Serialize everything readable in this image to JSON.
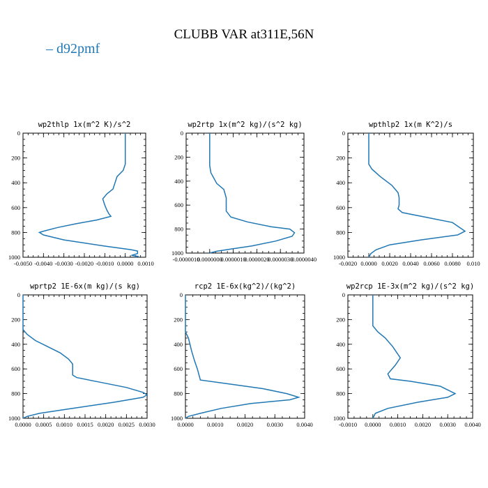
{
  "figure": {
    "title": "CLUBB VAR at311E,56N",
    "legend": "– d92pmf",
    "series_color": "#1f77b4"
  },
  "chart_data": [
    {
      "type": "line",
      "title": "wp2thlp  1x(m^2 K)/s^2",
      "xlim": [
        -0.005,
        0.001
      ],
      "ylim": [
        1000,
        0
      ],
      "xticks": [
        -0.005,
        -0.004,
        -0.003,
        -0.002,
        -0.001,
        0.0,
        0.001
      ],
      "xtick_labels": [
        "-0.0050",
        "-0.0040",
        "-0.0030",
        "-0.0020",
        "-0.0010",
        "0.0000",
        "0.0010"
      ],
      "yticks": [
        0,
        200,
        400,
        600,
        800,
        1000
      ],
      "ytick_labels": [
        "0",
        "200",
        "400",
        "600",
        "800",
        "1000"
      ],
      "series": [
        {
          "x": [
            0.0,
            0.0,
            0.0,
            0.0,
            -0.0001,
            -0.0004,
            -0.0005,
            -0.0006,
            -0.0009,
            -0.0011,
            -0.001,
            -0.0009,
            -0.0008,
            -0.0007,
            -0.0014,
            -0.0024,
            -0.0033,
            -0.004,
            -0.0042,
            -0.004,
            -0.003,
            -0.001,
            0.0003,
            0.0006,
            0.0006,
            0.0003,
            0.0006,
            0.0005
          ],
          "y": [
            0,
            100,
            200,
            250,
            300,
            350,
            400,
            450,
            490,
            530,
            580,
            620,
            650,
            670,
            700,
            730,
            760,
            790,
            800,
            820,
            860,
            910,
            940,
            950,
            970,
            985,
            992,
            1000
          ]
        }
      ]
    },
    {
      "type": "line",
      "title": "wp2rtp  1x(m^2 kg)/(s^2 kg)",
      "xlim": [
        -1e-06,
        4e-06
      ],
      "ylim": [
        1000,
        0
      ],
      "xticks": [
        -1e-06,
        0.0,
        1e-06,
        2e-06,
        3e-06,
        4e-06
      ],
      "xtick_labels": [
        "-0.0000010",
        "0.0000000",
        "0.0000010",
        "0.0000020",
        "0.0000030",
        "0.0000040"
      ],
      "yticks": [
        0,
        200,
        400,
        600,
        800,
        1000
      ],
      "ytick_labels": [
        "0",
        "200",
        "400",
        "600",
        "800",
        "1000"
      ],
      "series": [
        {
          "x": [
            0.0,
            0.0,
            0.0,
            0.0,
            5e-08,
            3e-07,
            6e-07,
            7e-07,
            7e-07,
            9e-07,
            1.6e-06,
            2.6e-06,
            3.4e-06,
            3.6e-06,
            3.5e-06,
            2.8e-06,
            1.8e-06,
            8e-07,
            3e-07,
            0.0
          ],
          "y": [
            0,
            100,
            200,
            270,
            330,
            420,
            470,
            540,
            650,
            700,
            740,
            780,
            800,
            830,
            860,
            900,
            940,
            970,
            985,
            1000
          ]
        }
      ]
    },
    {
      "type": "line",
      "title": "wpthlp2  1x(m K^2)/s",
      "xlim": [
        -0.002,
        0.01
      ],
      "ylim": [
        1000,
        0
      ],
      "xticks": [
        -0.002,
        0.0,
        0.002,
        0.004,
        0.006,
        0.008,
        0.01
      ],
      "xtick_labels": [
        "-0.0020",
        "0.0000",
        "0.0020",
        "0.0040",
        "0.0060",
        "0.0080",
        "0.010"
      ],
      "yticks": [
        0,
        200,
        400,
        600,
        800,
        1000
      ],
      "ytick_labels": [
        "0",
        "200",
        "400",
        "600",
        "800",
        "1000"
      ],
      "series": [
        {
          "x": [
            0.0,
            0.0,
            0.0,
            0.0,
            0.0003,
            0.0011,
            0.0022,
            0.0028,
            0.0029,
            0.0029,
            0.0028,
            0.0032,
            0.0056,
            0.008,
            0.0092,
            0.0085,
            0.005,
            0.002,
            0.0007,
            0.0002,
            0.0
          ],
          "y": [
            0,
            100,
            200,
            250,
            290,
            350,
            420,
            480,
            520,
            580,
            610,
            640,
            680,
            720,
            790,
            820,
            860,
            900,
            940,
            970,
            1000
          ]
        }
      ]
    },
    {
      "type": "line",
      "title": "wprtp2  1E-6x(m kg)/(s kg)",
      "xlim": [
        0.0,
        0.003
      ],
      "ylim": [
        1000,
        0
      ],
      "xticks": [
        0.0,
        0.0005,
        0.001,
        0.0015,
        0.002,
        0.0025,
        0.003
      ],
      "xtick_labels": [
        "0.0000",
        "0.0005",
        "0.0010",
        "0.0015",
        "0.0020",
        "0.0025",
        "0.0030"
      ],
      "yticks": [
        0,
        200,
        400,
        600,
        800,
        1000
      ],
      "ytick_labels": [
        "0",
        "200",
        "400",
        "600",
        "800",
        "1000"
      ],
      "series": [
        {
          "x": [
            0.0,
            0.0,
            0.0,
            0.0,
            0.0001,
            0.0003,
            0.0006,
            0.0009,
            0.0011,
            0.0012,
            0.0012,
            0.0013,
            0.0019,
            0.0025,
            0.0029,
            0.003,
            0.0029,
            0.0022,
            0.0012,
            0.0004,
            0.0001,
            0.0
          ],
          "y": [
            0,
            100,
            200,
            280,
            320,
            370,
            420,
            470,
            520,
            560,
            650,
            670,
            710,
            750,
            790,
            810,
            830,
            870,
            920,
            960,
            985,
            1000
          ]
        }
      ]
    },
    {
      "type": "line",
      "title": "rcp2  1E-6x(kg^2)/(kg^2)",
      "xlim": [
        0.0,
        0.004
      ],
      "ylim": [
        1000,
        0
      ],
      "xticks": [
        0.0,
        0.001,
        0.002,
        0.003,
        0.004
      ],
      "xtick_labels": [
        "0.0000",
        "0.0010",
        "0.0020",
        "0.0030",
        "0.0040"
      ],
      "yticks": [
        0,
        200,
        400,
        600,
        800,
        1000
      ],
      "ytick_labels": [
        "0",
        "200",
        "400",
        "600",
        "800",
        "1000"
      ],
      "series": [
        {
          "x": [
            0.0,
            0.0,
            0.0,
            0.0001,
            0.0002,
            0.0003,
            0.0004,
            0.0005,
            0.0014,
            0.0026,
            0.0034,
            0.0038,
            0.0035,
            0.0022,
            0.0012,
            0.0005,
            0.0001,
            0.0
          ],
          "y": [
            0,
            200,
            300,
            350,
            450,
            530,
            600,
            690,
            720,
            760,
            800,
            830,
            850,
            880,
            920,
            960,
            985,
            1000
          ]
        }
      ]
    },
    {
      "type": "line",
      "title": "wp2rcp  1E-3x(m^2 kg)/(s^2 kg)",
      "xlim": [
        -0.001,
        0.004
      ],
      "ylim": [
        1000,
        0
      ],
      "xticks": [
        -0.001,
        0.0,
        0.001,
        0.002,
        0.003,
        0.004
      ],
      "xtick_labels": [
        "-0.0010",
        "0.0000",
        "0.0010",
        "0.0020",
        "0.0030",
        "0.0040"
      ],
      "yticks": [
        0,
        200,
        400,
        600,
        800,
        1000
      ],
      "ytick_labels": [
        "0",
        "200",
        "400",
        "600",
        "800",
        "1000"
      ],
      "series": [
        {
          "x": [
            0.0,
            0.0,
            0.0,
            0.0002,
            0.0005,
            0.0008,
            0.0011,
            0.0009,
            0.0006,
            0.0007,
            0.0015,
            0.0027,
            0.0033,
            0.003,
            0.0018,
            0.0006,
            0.0001,
            0.0
          ],
          "y": [
            0,
            100,
            250,
            300,
            350,
            420,
            510,
            570,
            640,
            680,
            700,
            740,
            800,
            830,
            870,
            920,
            960,
            1000
          ]
        }
      ]
    }
  ]
}
